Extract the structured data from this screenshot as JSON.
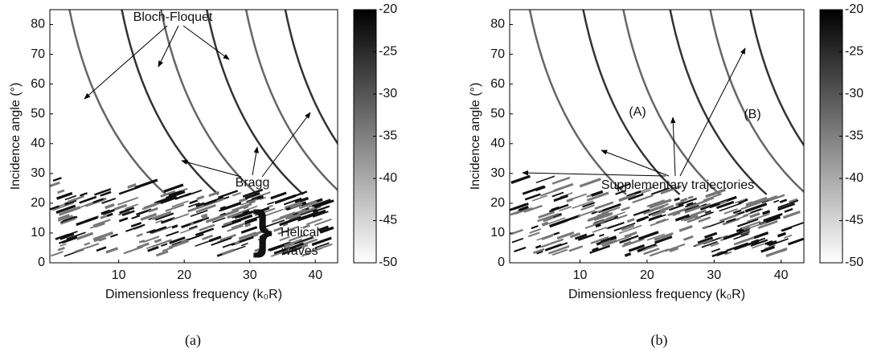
{
  "chart_data": [
    {
      "type": "heatmap",
      "x_label": "Dimensionless frequency (k₀R)",
      "y_label": "Incidence angle (°)",
      "xlim": [
        -0.5,
        43.4
      ],
      "xticks": [
        10,
        20,
        30,
        40
      ],
      "ylim": [
        0,
        85
      ],
      "yticks": [
        0,
        10,
        20,
        30,
        40,
        50,
        60,
        70,
        80
      ],
      "colorbar_lim": [
        -50,
        -20
      ],
      "colorbar_ticks": [
        -20,
        -25,
        -30,
        -35,
        -40,
        -45,
        -50
      ],
      "annotations": [
        "Bloch-Floquet",
        "Bragg",
        "Helical",
        "waves"
      ],
      "caption": "(a)"
    },
    {
      "type": "heatmap",
      "x_label": "Dimensionless frequency (k₀R)",
      "y_label": "Incidence angle (°)",
      "xlim": [
        -0.5,
        43.4
      ],
      "xticks": [
        10,
        20,
        30,
        40
      ],
      "ylim": [
        0,
        85
      ],
      "yticks": [
        0,
        10,
        20,
        30,
        40,
        50,
        60,
        70,
        80
      ],
      "colorbar_lim": [
        -50,
        -20
      ],
      "colorbar_ticks": [
        -20,
        -25,
        -30,
        -35,
        -40,
        -45,
        -50
      ],
      "annotations": [
        "(A)",
        "(B)",
        "Supplementary trajectories"
      ],
      "caption": "(b)"
    }
  ]
}
